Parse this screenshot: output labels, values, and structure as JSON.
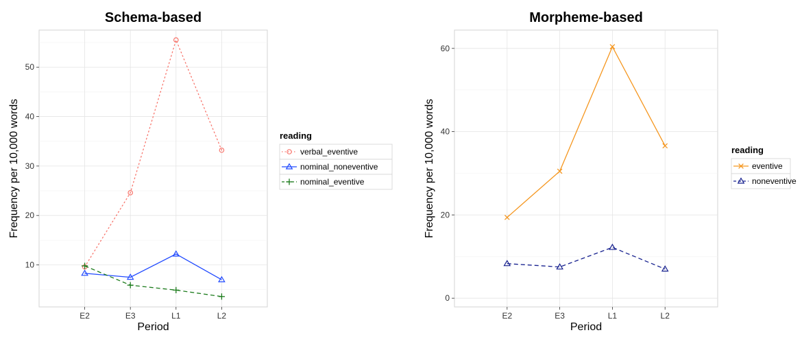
{
  "chart_data": [
    {
      "type": "line",
      "title": "Schema-based",
      "xlabel": "Period",
      "ylabel": "Frequency per 10,000 words",
      "categories": [
        "E2",
        "E3",
        "L1",
        "L2"
      ],
      "ylim": [
        1.5,
        57.5
      ],
      "yticks": [
        10,
        20,
        30,
        40,
        50
      ],
      "grid": true,
      "legend": {
        "title": "reading",
        "placement": "right"
      },
      "series": [
        {
          "name": "verbal_eventive",
          "values": [
            9.6,
            24.6,
            55.5,
            33.2
          ],
          "color": "#f8766d",
          "marker": "circle",
          "dash": "dotted"
        },
        {
          "name": "nominal_noneventive",
          "values": [
            8.3,
            7.5,
            12.2,
            7.0
          ],
          "color": "#1f49ff",
          "marker": "triangle",
          "dash": "solid"
        },
        {
          "name": "nominal_eventive",
          "values": [
            9.8,
            5.9,
            4.9,
            3.6
          ],
          "color": "#1a7a1a",
          "marker": "plus",
          "dash": "dashed"
        }
      ]
    },
    {
      "type": "line",
      "title": "Morpheme-based",
      "xlabel": "Period",
      "ylabel": "Frequency per 10,000 words",
      "categories": [
        "E2",
        "E3",
        "L1",
        "L2"
      ],
      "ylim": [
        -2.1,
        64.4
      ],
      "yticks": [
        0,
        20,
        40,
        60
      ],
      "grid": true,
      "legend": {
        "title": "reading",
        "placement": "right"
      },
      "series": [
        {
          "name": "eventive",
          "values": [
            19.4,
            30.5,
            60.4,
            36.6
          ],
          "color": "#f5961e",
          "marker": "cross",
          "dash": "solid"
        },
        {
          "name": "noneventive",
          "values": [
            8.3,
            7.5,
            12.2,
            7.0
          ],
          "color": "#17218f",
          "marker": "triangle",
          "dash": "dashed"
        }
      ]
    }
  ]
}
